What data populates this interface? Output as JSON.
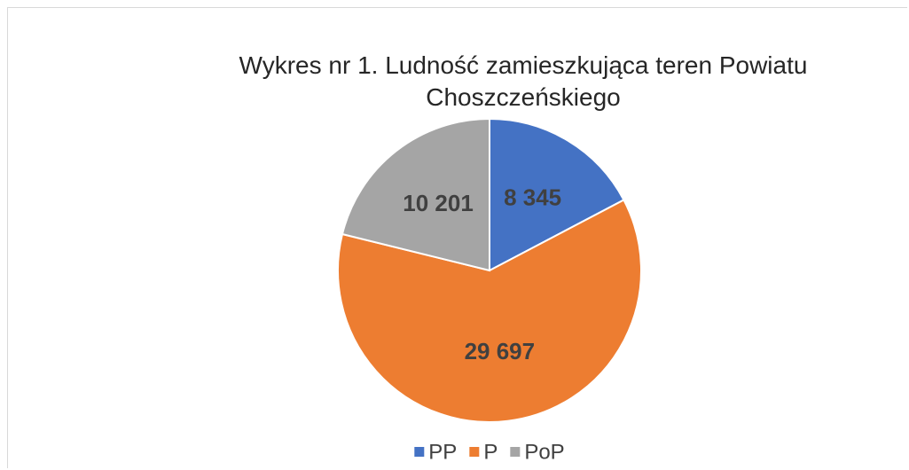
{
  "chart_data": {
    "type": "pie",
    "title": "Wykres nr 1. Ludność zamieszkująca teren Powiatu Choszczeńskiego",
    "categories": [
      "PP",
      "P",
      "PoP"
    ],
    "values": [
      8345,
      29697,
      10201
    ],
    "value_labels": [
      "8 345",
      "29 697",
      "10 201"
    ],
    "colors": [
      "#4472c4",
      "#ed7d31",
      "#a5a5a5"
    ],
    "legend": "bottom"
  }
}
